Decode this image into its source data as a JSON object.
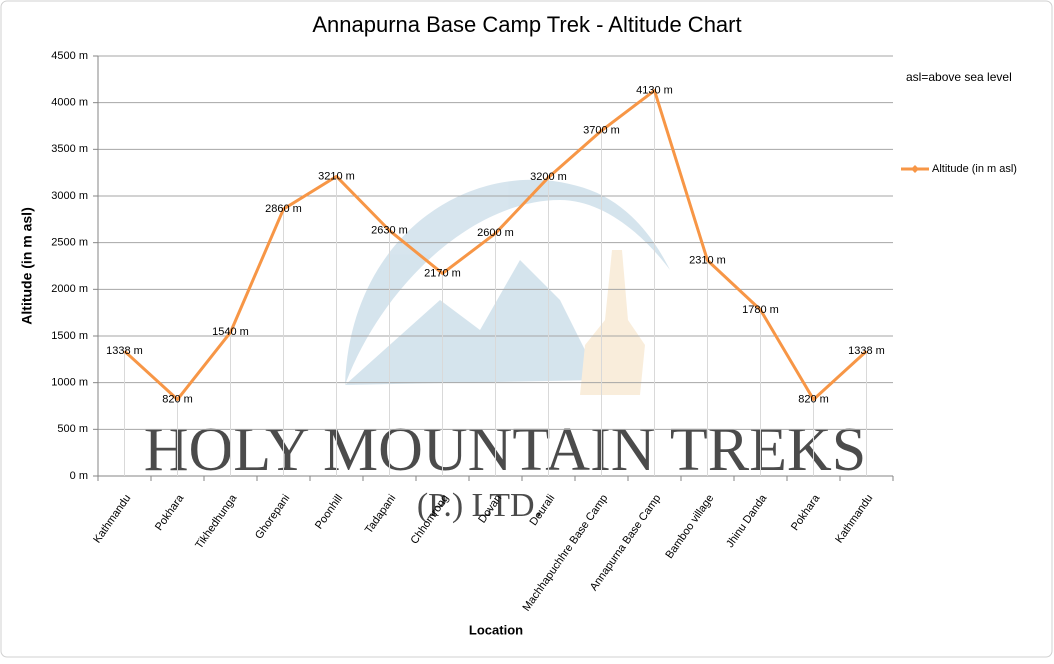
{
  "chart_data": {
    "type": "line",
    "title": "Annapurna Base Camp Trek - Altitude Chart",
    "x_label": "Location",
    "y_label": "Altitude (in m asl)",
    "annotation": "asl=above sea level",
    "watermark": [
      "HOLY MOUNTAIN TREKS",
      "(P.) LTD."
    ],
    "categories": [
      "Kathmandu",
      "Pokhara",
      "Tikhedhunga",
      "Ghorepani",
      "Poonhill",
      "Tadapani",
      "Chhomrong",
      "Dovan",
      "Deurali",
      "Machhapuchhre Base Camp",
      "Annapurna Base Camp",
      "Bamboo village",
      "Jhinu Danda",
      "Pokhara",
      "Kathmandu"
    ],
    "series": [
      {
        "name": "Altitude (in  m asl)",
        "color": "#f79646",
        "values": [
          1338,
          820,
          1540,
          2860,
          3210,
          2630,
          2170,
          2600,
          3200,
          3700,
          4130,
          2310,
          1780,
          820,
          1338
        ],
        "value_labels": [
          "1338 m",
          "820 m",
          "1540 m",
          "2860 m",
          "3210 m",
          "2630 m",
          "2170 m",
          "2600 m",
          "3200 m",
          "3700 m",
          "4130 m",
          "2310 m",
          "1780 m",
          "820 m",
          "1338 m"
        ]
      }
    ],
    "ylim": [
      0,
      4500
    ],
    "yticks": [
      {
        "value": 0,
        "label": "0 m"
      },
      {
        "value": 500,
        "label": "500 m"
      },
      {
        "value": 1000,
        "label": "1000 m"
      },
      {
        "value": 1500,
        "label": "1500 m"
      },
      {
        "value": 2000,
        "label": "2000 m"
      },
      {
        "value": 2500,
        "label": "2500 m"
      },
      {
        "value": 3000,
        "label": "3000 m"
      },
      {
        "value": 3500,
        "label": "3500 m"
      },
      {
        "value": 4000,
        "label": "4000 m"
      },
      {
        "value": 4500,
        "label": "4500 m"
      }
    ],
    "grid": true,
    "legend": "right"
  }
}
